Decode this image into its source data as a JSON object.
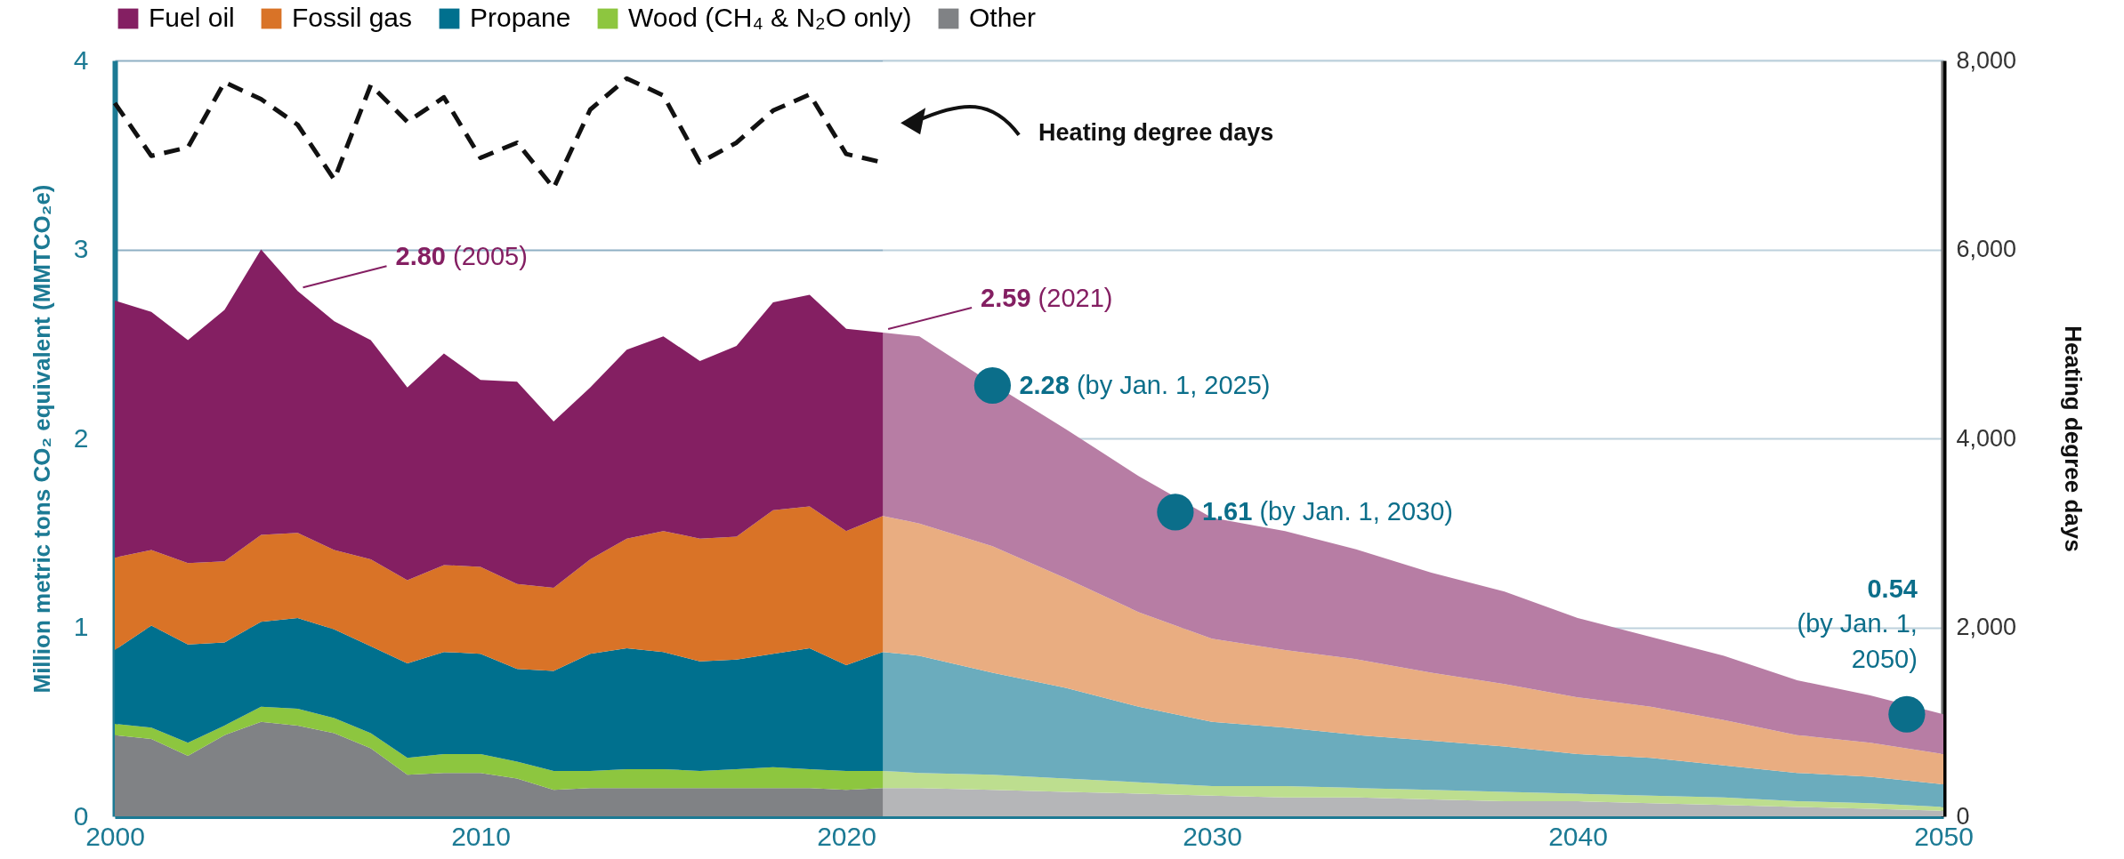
{
  "chart_data": {
    "type": "area",
    "stacked": true,
    "ylabel": "Million metric tons CO₂ equivalent (MMTCO₂e)",
    "y2label": "Heating degree days",
    "xlim": [
      2000,
      2050
    ],
    "xticks": [
      2000,
      2010,
      2020,
      2030,
      2040,
      2050
    ],
    "ylim": [
      0,
      4
    ],
    "yticks": [
      0,
      1,
      2,
      3,
      4
    ],
    "y2lim": [
      0,
      8000
    ],
    "y2ticks": [
      0,
      {
        "value": 2000,
        "label": "2,000"
      },
      {
        "value": 4000,
        "label": "4,000"
      },
      {
        "value": 6000,
        "label": "6,000"
      },
      {
        "value": 8000,
        "label": "8,000"
      }
    ],
    "grid": "y",
    "legend": "top left",
    "bands": [
      {
        "axis": "x",
        "from": 2021,
        "to": 2050,
        "color": "#ffffff"
      }
    ],
    "series": [
      {
        "name": "Other",
        "color": "#808285",
        "x": [
          2000,
          2001,
          2002,
          2003,
          2004,
          2005,
          2006,
          2007,
          2008,
          2009,
          2010,
          2011,
          2012,
          2013,
          2014,
          2015,
          2016,
          2017,
          2018,
          2019,
          2020,
          2021,
          2022,
          2024,
          2026,
          2028,
          2030,
          2032,
          2034,
          2036,
          2038,
          2040,
          2042,
          2044,
          2046,
          2048,
          2050
        ],
        "values": [
          0.43,
          0.41,
          0.32,
          0.43,
          0.5,
          0.48,
          0.44,
          0.36,
          0.22,
          0.23,
          0.23,
          0.2,
          0.14,
          0.15,
          0.15,
          0.15,
          0.15,
          0.15,
          0.15,
          0.15,
          0.14,
          0.15,
          0.15,
          0.14,
          0.13,
          0.12,
          0.11,
          0.1,
          0.1,
          0.09,
          0.08,
          0.08,
          0.07,
          0.06,
          0.05,
          0.04,
          0.03
        ]
      },
      {
        "name": "Wood (CH₄ & N₂O only)",
        "color": "#8dc63f",
        "x": [
          2000,
          2001,
          2002,
          2003,
          2004,
          2005,
          2006,
          2007,
          2008,
          2009,
          2010,
          2011,
          2012,
          2013,
          2014,
          2015,
          2016,
          2017,
          2018,
          2019,
          2020,
          2021,
          2022,
          2024,
          2026,
          2028,
          2030,
          2032,
          2034,
          2036,
          2038,
          2040,
          2042,
          2044,
          2046,
          2048,
          2050
        ],
        "values": [
          0.06,
          0.06,
          0.07,
          0.05,
          0.08,
          0.09,
          0.08,
          0.08,
          0.09,
          0.1,
          0.1,
          0.09,
          0.1,
          0.09,
          0.1,
          0.1,
          0.09,
          0.1,
          0.11,
          0.1,
          0.1,
          0.09,
          0.08,
          0.08,
          0.07,
          0.06,
          0.05,
          0.06,
          0.05,
          0.05,
          0.05,
          0.04,
          0.04,
          0.04,
          0.03,
          0.03,
          0.02
        ]
      },
      {
        "name": "Propane",
        "color": "#00708e",
        "x": [
          2000,
          2001,
          2002,
          2003,
          2004,
          2005,
          2006,
          2007,
          2008,
          2009,
          2010,
          2011,
          2012,
          2013,
          2014,
          2015,
          2016,
          2017,
          2018,
          2019,
          2020,
          2021,
          2022,
          2024,
          2026,
          2028,
          2030,
          2032,
          2034,
          2036,
          2038,
          2040,
          2042,
          2044,
          2046,
          2048,
          2050
        ],
        "values": [
          0.39,
          0.54,
          0.52,
          0.44,
          0.45,
          0.48,
          0.47,
          0.46,
          0.5,
          0.54,
          0.53,
          0.49,
          0.53,
          0.62,
          0.64,
          0.62,
          0.58,
          0.58,
          0.6,
          0.64,
          0.56,
          0.63,
          0.62,
          0.54,
          0.48,
          0.4,
          0.34,
          0.31,
          0.28,
          0.26,
          0.24,
          0.21,
          0.2,
          0.17,
          0.15,
          0.14,
          0.12
        ]
      },
      {
        "name": "Fossil gas",
        "color": "#d97327",
        "x": [
          2000,
          2001,
          2002,
          2003,
          2004,
          2005,
          2006,
          2007,
          2008,
          2009,
          2010,
          2011,
          2012,
          2013,
          2014,
          2015,
          2016,
          2017,
          2018,
          2019,
          2020,
          2021,
          2022,
          2024,
          2026,
          2028,
          2030,
          2032,
          2034,
          2036,
          2038,
          2040,
          2042,
          2044,
          2046,
          2048,
          2050
        ],
        "values": [
          0.49,
          0.4,
          0.43,
          0.43,
          0.46,
          0.45,
          0.42,
          0.46,
          0.44,
          0.46,
          0.46,
          0.45,
          0.44,
          0.5,
          0.58,
          0.64,
          0.65,
          0.65,
          0.76,
          0.75,
          0.71,
          0.72,
          0.7,
          0.67,
          0.58,
          0.5,
          0.44,
          0.41,
          0.4,
          0.36,
          0.33,
          0.3,
          0.27,
          0.24,
          0.2,
          0.18,
          0.16
        ]
      },
      {
        "name": "Fuel oil",
        "color": "#841f62",
        "x": [
          2000,
          2001,
          2002,
          2003,
          2004,
          2005,
          2006,
          2007,
          2008,
          2009,
          2010,
          2011,
          2012,
          2013,
          2014,
          2015,
          2016,
          2017,
          2018,
          2019,
          2020,
          2021,
          2022,
          2024,
          2026,
          2028,
          2030,
          2032,
          2034,
          2036,
          2038,
          2040,
          2042,
          2044,
          2046,
          2048,
          2050
        ],
        "values": [
          1.36,
          1.26,
          1.18,
          1.33,
          1.51,
          1.28,
          1.21,
          1.16,
          1.02,
          1.12,
          0.99,
          1.07,
          0.88,
          0.91,
          1.0,
          1.03,
          0.94,
          1.01,
          1.1,
          1.12,
          1.07,
          0.97,
          0.99,
          0.86,
          0.79,
          0.72,
          0.64,
          0.63,
          0.58,
          0.53,
          0.49,
          0.42,
          0.37,
          0.34,
          0.29,
          0.25,
          0.21
        ]
      },
      {
        "name": "Heating degree days",
        "type": "line",
        "axis": "y2",
        "color": "#111111",
        "line_style": "dashed",
        "x": [
          2000,
          2001,
          2002,
          2003,
          2004,
          2005,
          2006,
          2007,
          2008,
          2009,
          2010,
          2011,
          2012,
          2013,
          2014,
          2015,
          2016,
          2017,
          2018,
          2019,
          2020,
          2021
        ],
        "values": [
          7550,
          6990,
          7080,
          7770,
          7590,
          7320,
          6740,
          7740,
          7350,
          7610,
          6970,
          7130,
          6650,
          7480,
          7810,
          7630,
          6920,
          7130,
          7470,
          7640,
          7010,
          6920
        ]
      },
      {
        "type": "scatter",
        "marker": "circle",
        "color": "#0b6e8a",
        "x": [
          2024,
          2029,
          2049
        ],
        "values": [
          2.28,
          1.61,
          0.54
        ]
      }
    ],
    "annotations": [
      {
        "text": "2.80 (2005)",
        "x": 2005,
        "y": 2.78
      },
      {
        "text": "2.59 (2021)",
        "x": 2021,
        "y": 2.56
      },
      {
        "text": "2.28 (by Jan. 1, 2025)",
        "x": 2024,
        "y": 2.28
      },
      {
        "text": "1.61 (by Jan. 1, 2030)",
        "x": 2029,
        "y": 1.61
      },
      {
        "text": "0.54 (by Jan. 1, 2050)",
        "x": 2049,
        "y": 0.54
      }
    ]
  }
}
